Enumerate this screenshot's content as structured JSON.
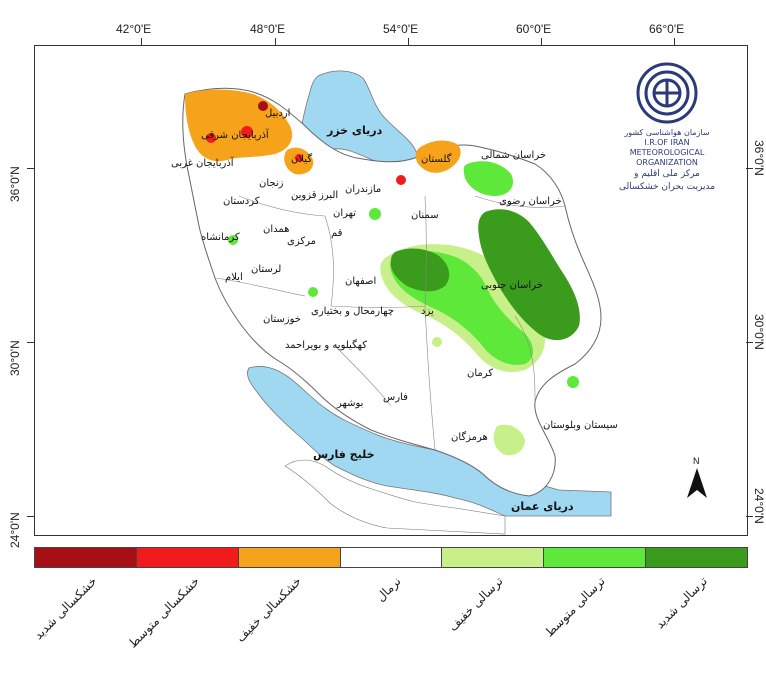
{
  "axes": {
    "top_ticks": [
      "42°0'E",
      "48°0'E",
      "54°0'E",
      "60°0'E",
      "66°0'E"
    ],
    "left_ticks": [
      "36°0'N",
      "30°0'N",
      "24°0'N"
    ],
    "right_ticks": [
      "36°0'N",
      "30°0'N",
      "24°0'N"
    ]
  },
  "water_bodies": {
    "caspian": "دریای خزر",
    "persian_gulf": "خلیج فارس",
    "oman_sea": "دریای عمان"
  },
  "provinces": [
    "اردبیل",
    "آذربایجان شرقی",
    "آذربایجان غربی",
    "زنجان",
    "گیلان",
    "مازندران",
    "البرز",
    "قزوین",
    "تهران",
    "قم",
    "کردستان",
    "همدان",
    "مرکزی",
    "کرمانشاه",
    "لرستان",
    "ایلام",
    "خوزستان",
    "چهارمحال و بختیاری",
    "اصفهان",
    "یزد",
    "کهگیلویه و بویراحمد",
    "فارس",
    "بوشهر",
    "هرمزگان",
    "کرمان",
    "سیستان وبلوستان",
    "خراسان جنوبی",
    "خراسان رضوی",
    "خراسان شمالی",
    "گلستان",
    "سمنان"
  ],
  "legend": {
    "classes": [
      {
        "label": "خشکسالی شدید",
        "color": "#a50f15"
      },
      {
        "label": "خشکسالی متوسط",
        "color": "#f21b1b"
      },
      {
        "label": "خشکسالی خفیف",
        "color": "#f7a21b"
      },
      {
        "label": "نرمال",
        "color": "#ffffff"
      },
      {
        "label": "ترسالی خفیف",
        "color": "#c8f08a"
      },
      {
        "label": "ترسالی متوسط",
        "color": "#5ee83a"
      },
      {
        "label": "ترسالی شدید",
        "color": "#3a9b1c"
      }
    ]
  },
  "logo": {
    "org_fa": "سازمان هواشناسی کشور",
    "org_en_1": "I.R.OF IRAN",
    "org_en_2": "METEOROLOGICAL",
    "org_en_3": "ORGANIZATION",
    "center_line_1": "مرکز ملی اقلیم و",
    "center_line_2": "مدیریت بحران خشکسالی"
  },
  "north_arrow": "N",
  "colors": {
    "water": "#9fd8f0",
    "land": "#ffffff",
    "border": "#777777"
  }
}
